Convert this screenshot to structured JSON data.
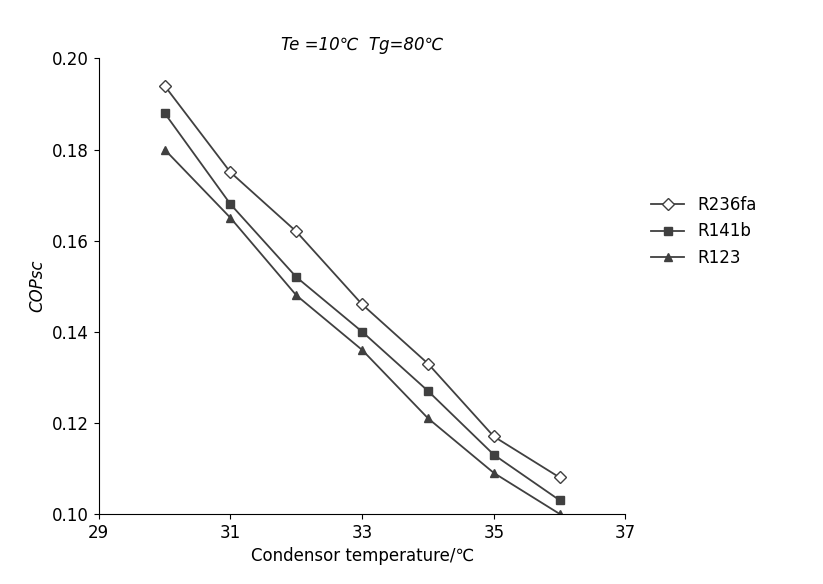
{
  "chart_data": {
    "type": "line",
    "title": "Te =10℃  Tg=80℃",
    "x_label": "Condensor temperature/℃",
    "y_label": "COPsc",
    "x": [
      30,
      31,
      32,
      33,
      34,
      35,
      36
    ],
    "series": [
      {
        "name": "R236fa",
        "color": "#404040",
        "marker": "diamond",
        "line_style": "solid",
        "values": [
          0.194,
          0.175,
          0.162,
          0.146,
          0.133,
          0.117,
          0.108
        ]
      },
      {
        "name": "R141b",
        "color": "#404040",
        "marker": "square",
        "line_style": "solid",
        "values": [
          0.188,
          0.168,
          0.152,
          0.14,
          0.127,
          0.113,
          0.103
        ]
      },
      {
        "name": "R123",
        "color": "#404040",
        "marker": "triangle",
        "line_style": "solid",
        "values": [
          0.18,
          0.165,
          0.148,
          0.136,
          0.121,
          0.109,
          0.1
        ]
      }
    ],
    "xlim": [
      29,
      37
    ],
    "xticks": [
      29,
      31,
      33,
      35,
      37
    ],
    "ylim": [
      0.1,
      0.2
    ],
    "yticks": [
      {
        "value": 0.1,
        "label": "0.10"
      },
      {
        "value": 0.12,
        "label": "0.12"
      },
      {
        "value": 0.14,
        "label": "0.14"
      },
      {
        "value": 0.16,
        "label": "0.16"
      },
      {
        "value": 0.18,
        "label": "0.18"
      },
      {
        "value": 0.2,
        "label": "0.20"
      }
    ],
    "grid": false,
    "legend": "center left"
  }
}
